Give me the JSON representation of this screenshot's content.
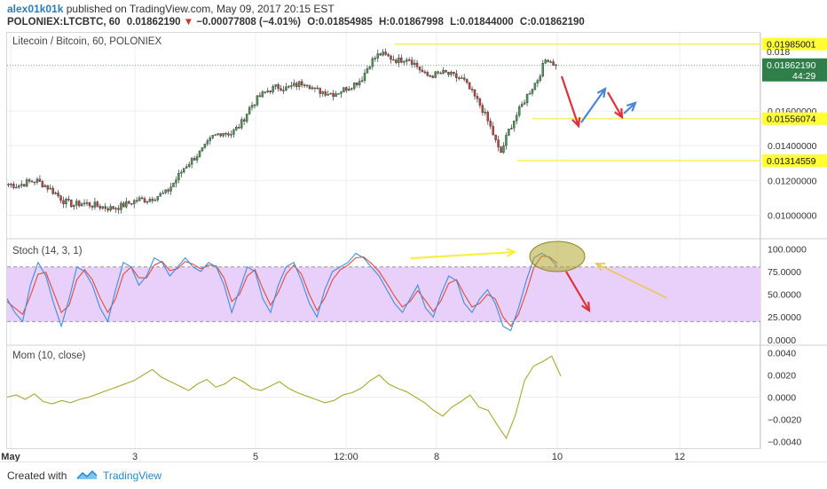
{
  "header": {
    "author": "alex01k01k",
    "published_text": "published on TradingView.com, May 09, 2017 20:15 EST",
    "symbol": "POLONIEX:LTCBTC, 60",
    "last": "0.01862190",
    "change_arrow": "▼",
    "change": "−0.00077808 (−4.01%)",
    "open_label": "O:",
    "open": "0.01854985",
    "high_label": "H:",
    "high": "0.01867998",
    "low_label": "L:",
    "low": "0.01844000",
    "close_label": "C:",
    "close": "0.01862190"
  },
  "panes": {
    "price_label": "Litecoin / Bitcoin, 60, POLONIEX",
    "stoch_label": "Stoch (14, 3, 1)",
    "mom_label": "Mom (10, close)"
  },
  "footer": {
    "created_with": "Created with",
    "brand": "TradingView"
  },
  "colors": {
    "bull": "#4a9a55",
    "bear": "#c5403d",
    "hline": "#f5f06a",
    "hlabel_bg": "#ffff33",
    "stoch_k": "#3c8ee0",
    "stoch_d": "#e24a3a",
    "stoch_band": "#e8d0fa",
    "mom": "#a8a832",
    "arrow_red": "#e0303a",
    "arrow_blue": "#4a86d8",
    "arrow_yellow": "#f5f046",
    "arrow_orange": "#e8c860",
    "ellipse": "#b0a830",
    "last_price_bg": "#2f7f4a"
  },
  "chart_data": [
    {
      "type": "candlestick",
      "title": "Litecoin / Bitcoin, 60, POLONIEX",
      "ylim": [
        0.0087,
        0.0205
      ],
      "y_ticks": [
        "0.01000000",
        "0.01200000",
        "0.01400000",
        "0.01600000"
      ],
      "x_ticks": [
        "May",
        "3",
        "5",
        "12:00",
        "8",
        "10",
        "12"
      ],
      "close_path": [
        0.0118,
        0.0117,
        0.0119,
        0.012,
        0.0117,
        0.0113,
        0.0108,
        0.0106,
        0.0107,
        0.0106,
        0.0105,
        0.0104,
        0.0105,
        0.0107,
        0.0109,
        0.0109,
        0.0111,
        0.0113,
        0.012,
        0.0128,
        0.0133,
        0.0138,
        0.0145,
        0.0148,
        0.0147,
        0.0152,
        0.0162,
        0.0168,
        0.0172,
        0.0174,
        0.0173,
        0.0175,
        0.0177,
        0.0172,
        0.0171,
        0.017,
        0.0172,
        0.0175,
        0.0178,
        0.0188,
        0.0193,
        0.0191,
        0.0189,
        0.0191,
        0.0186,
        0.018,
        0.0181,
        0.0182,
        0.018,
        0.0178,
        0.017,
        0.0162,
        0.015,
        0.0135,
        0.015,
        0.016,
        0.017,
        0.0178,
        0.0191,
        0.0186
      ],
      "last_price": "0.01862190",
      "countdown": "44:29",
      "axis_partial_label": "0.018",
      "horizontal_levels": [
        {
          "value": 0.01985001,
          "label": "0.01985001"
        },
        {
          "value": 0.01556074,
          "label": "0.01556074"
        },
        {
          "value": 0.01314559,
          "label": "0.01314559"
        }
      ]
    },
    {
      "type": "line",
      "title": "Stoch (14, 3, 1)",
      "ylim": [
        -5,
        110
      ],
      "y_ticks": [
        "100.0000",
        "75.0000",
        "50.0000",
        "25.0000",
        "0.0000"
      ],
      "band": [
        20,
        80
      ],
      "series": [
        {
          "values": [
            45,
            30,
            20,
            60,
            85,
            70,
            40,
            15,
            45,
            80,
            75,
            60,
            35,
            20,
            55,
            85,
            80,
            60,
            70,
            90,
            85,
            70,
            80,
            90,
            80,
            75,
            85,
            80,
            60,
            30,
            55,
            80,
            75,
            45,
            30,
            60,
            80,
            85,
            65,
            40,
            25,
            55,
            75,
            80,
            85,
            95,
            90,
            80,
            70,
            55,
            40,
            30,
            45,
            60,
            35,
            25,
            50,
            70,
            65,
            40,
            30,
            45,
            55,
            40,
            15,
            10,
            35,
            65,
            90,
            95,
            90,
            80
          ]
        },
        {
          "values": [
            42,
            35,
            28,
            48,
            72,
            74,
            52,
            30,
            38,
            66,
            77,
            66,
            46,
            30,
            45,
            72,
            80,
            68,
            68,
            82,
            86,
            76,
            78,
            86,
            83,
            78,
            82,
            81,
            68,
            42,
            50,
            70,
            77,
            56,
            38,
            52,
            72,
            82,
            72,
            50,
            32,
            46,
            66,
            77,
            82,
            90,
            91,
            84,
            75,
            62,
            48,
            36,
            42,
            54,
            43,
            31,
            43,
            62,
            66,
            50,
            36,
            40,
            50,
            45,
            25,
            15,
            28,
            52,
            80,
            92,
            91,
            84
          ]
        }
      ]
    },
    {
      "type": "line",
      "title": "Mom (10, close)",
      "ylim": [
        -0.0046,
        0.0046
      ],
      "y_ticks": [
        "0.0040",
        "0.0020",
        "0.0000",
        "−0.0020",
        "−0.0040"
      ],
      "series": [
        {
          "values": [
            0.0,
            0.0002,
            -0.0002,
            0.0003,
            -0.0004,
            -0.0006,
            -0.0003,
            -0.0005,
            -0.0002,
            0.0,
            0.0003,
            0.0006,
            0.0009,
            0.0012,
            0.0015,
            0.002,
            0.0025,
            0.0018,
            0.0014,
            0.001,
            0.0006,
            0.0012,
            0.0016,
            0.0009,
            0.0012,
            0.0018,
            0.0014,
            0.0008,
            0.0006,
            0.001,
            0.0014,
            0.0008,
            0.0004,
            0.0001,
            -0.0002,
            -0.0005,
            -0.0003,
            0.0002,
            0.0004,
            0.0008,
            0.0015,
            0.002,
            0.0012,
            0.0008,
            0.0005,
            0.0,
            -0.0005,
            -0.0012,
            -0.0017,
            -0.0009,
            -0.0004,
            0.0002,
            -0.0009,
            -0.0012,
            -0.0025,
            -0.0037,
            -0.0016,
            0.0015,
            0.0028,
            0.0032,
            0.0037,
            0.0019
          ]
        }
      ]
    }
  ]
}
